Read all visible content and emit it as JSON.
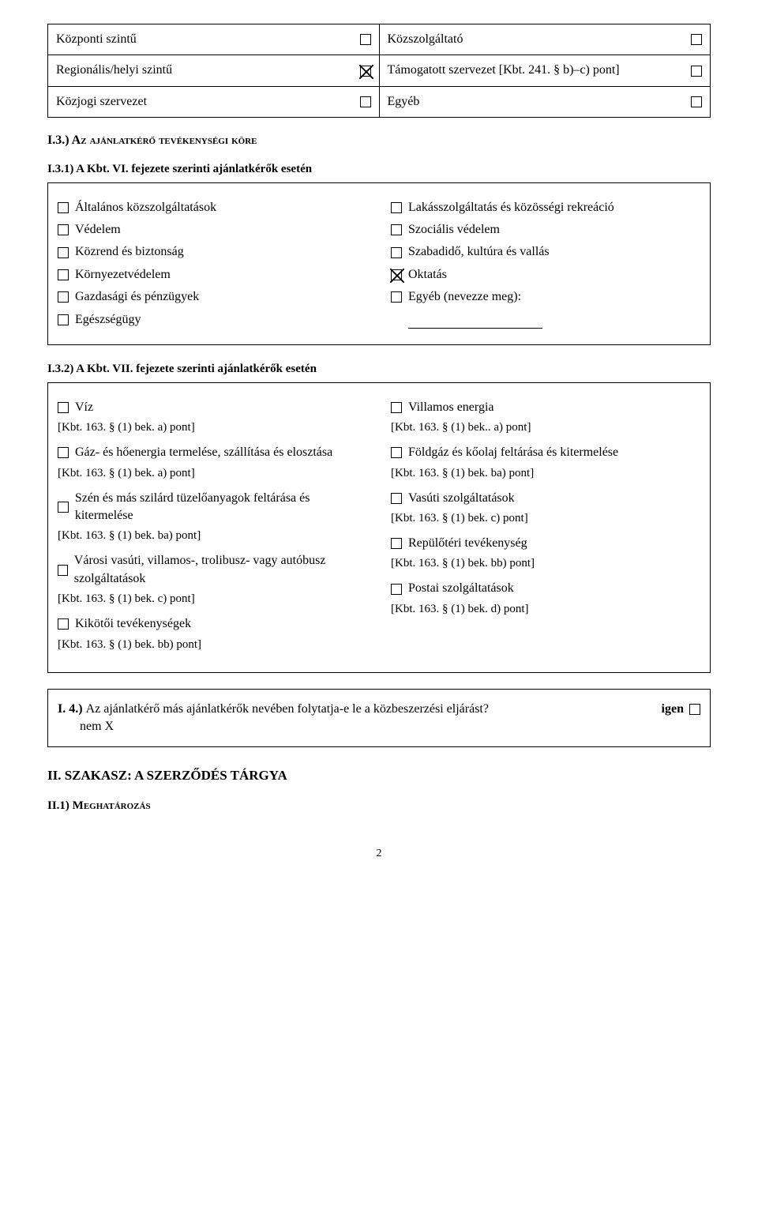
{
  "topTable": {
    "rows": [
      [
        {
          "label": "Központi szintű",
          "checked": false
        },
        {
          "label": "Közszolgáltató",
          "checked": false
        }
      ],
      [
        {
          "label": "Regionális/helyi szintű",
          "checked": true
        },
        {
          "label": "Támogatott szervezet [Kbt. 241. § b)–c) pont]",
          "checked": false
        }
      ],
      [
        {
          "label": "Közjogi szervezet",
          "checked": false
        },
        {
          "label": "Egyéb",
          "checked": false
        }
      ]
    ]
  },
  "section_I3": {
    "heading": "I.3.) Az ajánlatkérő tevékenységi köre",
    "sub1_heading": "I.3.1) A Kbt. VI. fejezete szerinti ajánlatkérők esetén",
    "left": [
      {
        "label": "Általános közszolgáltatások",
        "checked": false
      },
      {
        "label": "Védelem",
        "checked": false
      },
      {
        "label": "Közrend és biztonság",
        "checked": false
      },
      {
        "label": "Környezetvédelem",
        "checked": false
      },
      {
        "label": "Gazdasági és pénzügyek",
        "checked": false
      },
      {
        "label": "Egészségügy",
        "checked": false
      }
    ],
    "right": [
      {
        "label": "Lakásszolgáltatás és közösségi rekreáció",
        "checked": false
      },
      {
        "label": "Szociális védelem",
        "checked": false
      },
      {
        "label": "Szabadidő, kultúra és vallás",
        "checked": false
      },
      {
        "label": "Oktatás",
        "checked": true
      },
      {
        "label": "Egyéb (nevezze meg):",
        "checked": false,
        "hasUnderline": true
      }
    ],
    "sub2_heading": "I.3.2) A Kbt. VII. fejezete szerinti ajánlatkérők esetén",
    "pairs": [
      {
        "left": {
          "label": "Víz",
          "ref": "[Kbt. 163. § (1) bek. a) pont]",
          "checked": false
        },
        "right": {
          "label": "Villamos energia",
          "ref": "[Kbt. 163. § (1) bek.. a) pont]",
          "checked": false
        }
      },
      {
        "left": {
          "label": "Gáz- és hőenergia termelése, szállítása és elosztása",
          "ref": "[Kbt. 163. § (1) bek. a) pont]",
          "checked": false
        },
        "right": {
          "label": "Földgáz és kőolaj feltárása és kitermelése",
          "ref": "[Kbt. 163. § (1) bek. ba) pont]",
          "checked": false
        }
      },
      {
        "left": {
          "label": "Szén és más szilárd tüzelőanyagok feltárása és kitermelése",
          "ref": "[Kbt. 163. § (1) bek. ba) pont]",
          "checked": false
        },
        "right": {
          "label": "Vasúti szolgáltatások",
          "ref": "[Kbt. 163. § (1) bek. c) pont]",
          "checked": false
        }
      },
      {
        "left": {
          "label": "Városi vasúti, villamos-, trolibusz- vagy autóbusz szolgáltatások",
          "ref": "[Kbt. 163. § (1) bek. c) pont]",
          "checked": false
        },
        "right": {
          "label": "Repülőtéri tevékenység",
          "ref": "[Kbt. 163. § (1) bek. bb) pont]",
          "checked": false
        }
      },
      {
        "left": {
          "label": "Kikötői tevékenységek",
          "ref": "[Kbt. 163. § (1) bek. bb) pont]",
          "checked": false
        },
        "right": {
          "label": "Postai szolgáltatások",
          "ref": "[Kbt. 163. § (1) bek. d) pont]",
          "checked": false
        }
      }
    ]
  },
  "section_I4": {
    "text_prefix": "I. 4.) ",
    "text_body": "Az ajánlatkérő más ajánlatkérők nevében folytatja-e le a közbeszerzési eljárást?",
    "igen": "igen",
    "nem": "nem X"
  },
  "section_II": {
    "heading": "II. SZAKASZ: A SZERZŐDÉS TÁRGYA",
    "sub1": "II.1) Meghatározás"
  },
  "page_number": "2"
}
